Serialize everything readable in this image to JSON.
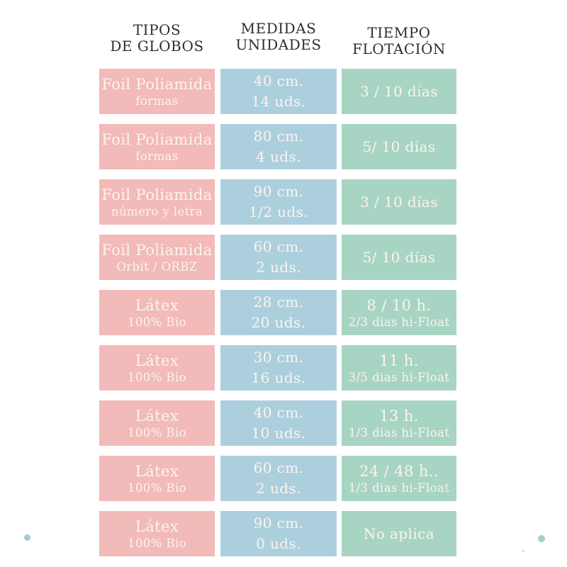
{
  "colors": {
    "tipo_cell": "#f2bab8",
    "medida_cell": "#accfde",
    "tiempo_cell": "#a8d4c4",
    "cell_text": "#fbf4ee",
    "header_text": "#2e2e2e",
    "left_dot": "#a3cbdd",
    "right_dot": "#9ed1c2",
    "tiny_dot": "#b8c4c8",
    "background": "#ffffff"
  },
  "table": {
    "headers": [
      {
        "id": "tipos",
        "lines": [
          "TIPOS",
          "DE GLOBOS"
        ]
      },
      {
        "id": "medidas",
        "lines": [
          "MEDIDAS",
          "UNIDADES"
        ]
      },
      {
        "id": "tiempo",
        "lines": [
          "TIEMPO",
          "FLOTACIÓN"
        ]
      }
    ],
    "rows": [
      {
        "tipo": [
          "Foil Poliamida",
          "formas"
        ],
        "medida": [
          "40 cm.",
          "14 uds."
        ],
        "tiempo": [
          "3 / 10 días"
        ]
      },
      {
        "tipo": [
          "Foil Poliamida",
          "formas"
        ],
        "medida": [
          "80 cm.",
          "4 uds."
        ],
        "tiempo": [
          "5/ 10 días"
        ]
      },
      {
        "tipo": [
          "Foil Poliamida",
          "número y letra"
        ],
        "medida": [
          "90 cm.",
          "1/2 uds."
        ],
        "tiempo": [
          "3 / 10 días"
        ]
      },
      {
        "tipo": [
          "Foil Poliamida",
          "Orbit / ORBZ"
        ],
        "medida": [
          "60 cm.",
          "2 uds."
        ],
        "tiempo": [
          "5/ 10 días"
        ]
      },
      {
        "tipo": [
          "Látex",
          "100% Bio"
        ],
        "medida": [
          "28 cm.",
          "20 uds."
        ],
        "tiempo": [
          "8 / 10 h.",
          "2/3 dias hi-Float"
        ]
      },
      {
        "tipo": [
          "Látex",
          "100% Bio"
        ],
        "medida": [
          "30 cm.",
          "16 uds."
        ],
        "tiempo": [
          "11 h.",
          "3/5 dias hi-Float"
        ]
      },
      {
        "tipo": [
          "Látex",
          "100% Bio"
        ],
        "medida": [
          "40 cm.",
          "10 uds."
        ],
        "tiempo": [
          "13 h.",
          "1/3 dias hi-Float"
        ]
      },
      {
        "tipo": [
          "Látex",
          "100% Bio"
        ],
        "medida": [
          "60 cm.",
          "2 uds."
        ],
        "tiempo": [
          "24 / 48 h..",
          "1/3 dias hi-Float"
        ]
      },
      {
        "tipo": [
          "Látex",
          "100% Bio"
        ],
        "medida": [
          "90 cm.",
          "0 uds."
        ],
        "tiempo": [
          "No aplica"
        ]
      }
    ]
  },
  "chart_data": {
    "type": "table",
    "title": "",
    "columns": [
      "TIPOS DE GLOBOS",
      "MEDIDAS UNIDADES",
      "TIEMPO FLOTACIÓN"
    ],
    "rows": [
      [
        "Foil Poliamida formas",
        "40 cm. 14 uds.",
        "3 / 10 días"
      ],
      [
        "Foil Poliamida formas",
        "80 cm. 4 uds.",
        "5/ 10 días"
      ],
      [
        "Foil Poliamida número y letra",
        "90 cm. 1/2 uds.",
        "3 / 10 días"
      ],
      [
        "Foil Poliamida Orbit / ORBZ",
        "60 cm. 2 uds.",
        "5/ 10 días"
      ],
      [
        "Látex 100% Bio",
        "28 cm. 20 uds.",
        "8 / 10 h. 2/3 dias hi-Float"
      ],
      [
        "Látex 100% Bio",
        "30 cm. 16 uds.",
        "11 h. 3/5 dias hi-Float"
      ],
      [
        "Látex 100% Bio",
        "40 cm. 10 uds.",
        "13 h. 1/3 dias hi-Float"
      ],
      [
        "Látex 100% Bio",
        "60 cm. 2 uds.",
        "24 / 48 h.. 1/3 dias hi-Float"
      ],
      [
        "Látex 100% Bio",
        "90 cm. 0 uds.",
        "No aplica"
      ]
    ],
    "layout": {
      "header_row": true,
      "grid": false,
      "cell_colors_by_column": [
        "#f2bab8",
        "#accfde",
        "#a8d4c4"
      ]
    }
  }
}
